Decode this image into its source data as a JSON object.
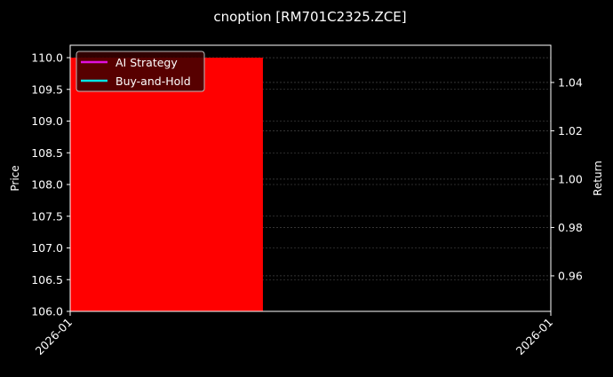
{
  "chart_data": {
    "type": "bar",
    "title": "cnoption [RM701C2325.ZCE]",
    "xlabel": "",
    "ylabel": "Price",
    "ylabel_right": "Return",
    "x_tick_labels": [
      "2026-01",
      "2026-01"
    ],
    "ylim": [
      106.0,
      110.196
    ],
    "ylim_right": [
      0.9453,
      1.0554
    ],
    "y_ticks": [
      "106.0",
      "106.5",
      "107.0",
      "107.5",
      "108.0",
      "108.5",
      "109.0",
      "109.5",
      "110.0"
    ],
    "y_ticks_right": [
      "0.96",
      "0.98",
      "1.00",
      "1.02",
      "1.04"
    ],
    "bars": [
      {
        "value": 110.0,
        "baseline": 106.0,
        "color": "#ff0000"
      }
    ],
    "series": [
      {
        "name": "AI Strategy",
        "color": "#e010e0",
        "values": []
      },
      {
        "name": "Buy-and-Hold",
        "color": "#00e5e5",
        "values": []
      }
    ],
    "grid": true,
    "legend_placement": "top-left",
    "background": "#000000"
  }
}
